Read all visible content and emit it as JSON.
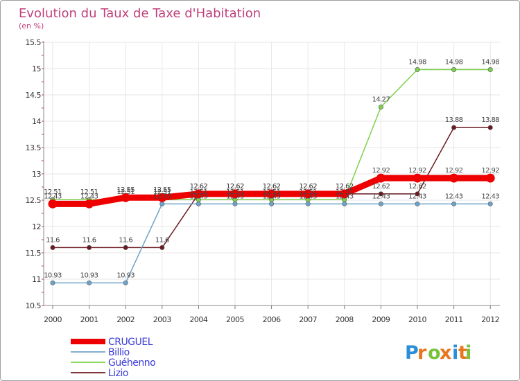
{
  "chart_data": {
    "type": "line",
    "title": "Evolution du Taux de Taxe d'Habitation",
    "subtitle": "(en %)",
    "ylim": [
      10.5,
      15.5
    ],
    "yticks": [
      "10.5",
      "11",
      "11.5",
      "12",
      "12.5",
      "13",
      "13.5",
      "14",
      "14.5",
      "15",
      "15.5"
    ],
    "x": [
      "2000",
      "2001",
      "2002",
      "2003",
      "2004",
      "2005",
      "2006",
      "2007",
      "2008",
      "2009",
      "2010",
      "2011",
      "2012"
    ],
    "grid": true,
    "legend": "bottom-left",
    "series": [
      {
        "name": "Guéhenno",
        "color": "#7ed04b",
        "values": [
          12.51,
          12.51,
          12.51,
          12.51,
          12.51,
          12.51,
          12.51,
          12.51,
          12.51,
          14.27,
          14.98,
          14.98,
          14.98
        ],
        "labels": [
          "12.51",
          "12.51",
          "12.51",
          "12.51",
          "12.51",
          "12.51",
          "12.51",
          "12.51",
          "12.51",
          "14.27",
          "14.98",
          "14.98",
          "14.98"
        ]
      },
      {
        "name": "Lizio",
        "color": "#6b1a20",
        "values": [
          11.6,
          11.6,
          11.6,
          11.6,
          12.62,
          12.62,
          12.62,
          12.62,
          12.62,
          12.62,
          12.62,
          13.88,
          13.88
        ],
        "labels": [
          "11.6",
          "11.6",
          "11.6",
          "11.6",
          "12.62",
          "12.62",
          "12.62",
          "12.62",
          "12.62",
          "12.62",
          "12.62",
          "13.88",
          "13.88"
        ]
      },
      {
        "name": "Billio",
        "color": "#6ea3c8",
        "values": [
          10.93,
          10.93,
          10.93,
          12.43,
          12.43,
          12.43,
          12.43,
          12.43,
          12.43,
          12.43,
          12.43,
          12.43,
          12.43
        ],
        "labels": [
          "10.93",
          "10.93",
          "10.93",
          "12.43",
          "12.43",
          "12.43",
          "12.43",
          "12.43",
          "12.43",
          "12.43",
          "12.43",
          "12.43",
          "12.43"
        ]
      },
      {
        "name": "CRUGUEL",
        "color": "#ee0000",
        "values": [
          12.43,
          12.43,
          12.55,
          12.55,
          12.62,
          12.62,
          12.62,
          12.62,
          12.62,
          12.92,
          12.92,
          12.92,
          12.92
        ],
        "labels": [
          "12.43",
          "12.43",
          "12.55",
          "12.55",
          "12.62",
          "12.62",
          "12.62",
          "12.62",
          "12.62",
          "12.92",
          "12.92",
          "12.92",
          "12.92"
        ]
      }
    ],
    "legend_order": [
      "CRUGUEL",
      "Billio",
      "Guéhenno",
      "Lizio"
    ]
  },
  "logo": {
    "text": "Proxiti",
    "colors": [
      "#2a8fd8",
      "#e8761c",
      "#7ac23e",
      "#e8761c",
      "#2a8fd8",
      "#e8761c",
      "#7ac23e"
    ]
  }
}
